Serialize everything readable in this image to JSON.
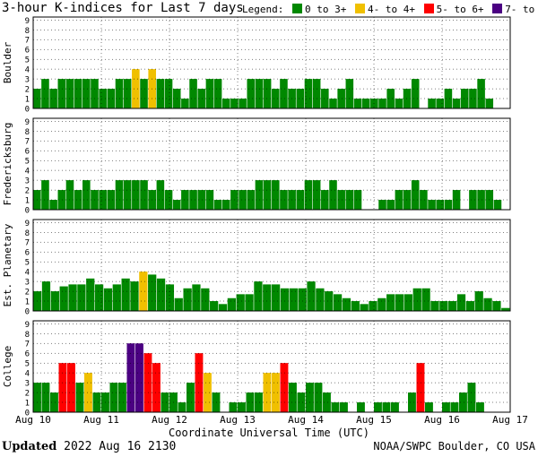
{
  "header": {
    "title": "3-hour K-indices for Last 7 days",
    "legend_label": "Legend:",
    "legend": [
      {
        "label": "0 to 3+",
        "color": "#008800"
      },
      {
        "label": "4- to 4+",
        "color": "#f0c000"
      },
      {
        "label": "5- to 6+",
        "color": "#ff0000"
      },
      {
        "label": "7- to 9",
        "color": "#4b0082"
      }
    ]
  },
  "footer": {
    "updated_label": "Updated",
    "updated_time": "2022 Aug 16 2130",
    "source": "NOAA/SWPC Boulder, CO USA"
  },
  "chart_data": [
    {
      "type": "bar",
      "ylabel": "Boulder",
      "ylim": [
        0,
        9
      ],
      "yticks": [
        "0",
        "1",
        "2",
        "3",
        "4",
        "5",
        "6",
        "7",
        "8",
        "9"
      ],
      "values": [
        2,
        3,
        2,
        3,
        3,
        3,
        3,
        3,
        2,
        2,
        3,
        3,
        4,
        3,
        4,
        3,
        3,
        2,
        1,
        3,
        2,
        3,
        3,
        1,
        1,
        1,
        3,
        3,
        3,
        2,
        3,
        2,
        2,
        3,
        3,
        2,
        1,
        2,
        3,
        1,
        1,
        1,
        1,
        2,
        1,
        2,
        3,
        0,
        1,
        1,
        2,
        1,
        2,
        2,
        3,
        1,
        0,
        0
      ]
    },
    {
      "type": "bar",
      "ylabel": "Fredericksburg",
      "ylim": [
        0,
        9
      ],
      "yticks": [
        "0",
        "1",
        "2",
        "3",
        "4",
        "5",
        "6",
        "7",
        "8",
        "9"
      ],
      "values": [
        2,
        3,
        1,
        2,
        3,
        2,
        3,
        2,
        2,
        2,
        3,
        3,
        3,
        3,
        2,
        3,
        2,
        1,
        2,
        2,
        2,
        2,
        1,
        1,
        2,
        2,
        2,
        3,
        3,
        3,
        2,
        2,
        2,
        3,
        3,
        2,
        3,
        2,
        2,
        2,
        0,
        0,
        1,
        1,
        2,
        2,
        3,
        2,
        1,
        1,
        1,
        2,
        0,
        2,
        2,
        2,
        1,
        0
      ]
    },
    {
      "type": "bar",
      "ylabel": "Est. Planetary",
      "ylim": [
        0,
        9
      ],
      "yticks": [
        "0",
        "1",
        "2",
        "3",
        "4",
        "5",
        "6",
        "7",
        "8",
        "9"
      ],
      "values": [
        2,
        3,
        2,
        2.5,
        2.7,
        2.7,
        3.3,
        2.7,
        2.3,
        2.7,
        3.3,
        3,
        4,
        3.7,
        3.3,
        2.7,
        1.3,
        2.3,
        2.7,
        2.3,
        1,
        0.7,
        1.3,
        1.7,
        1.7,
        3,
        2.7,
        2.7,
        2.3,
        2.3,
        2.3,
        3,
        2.3,
        2,
        1.7,
        1.3,
        1,
        0.7,
        1,
        1.3,
        1.7,
        1.7,
        1.7,
        2.3,
        2.3,
        1,
        1,
        1,
        1.7,
        1,
        2,
        1.3,
        1,
        0.3
      ]
    },
    {
      "type": "bar",
      "ylabel": "College",
      "ylim": [
        0,
        9
      ],
      "yticks": [
        "0",
        "1",
        "2",
        "3",
        "4",
        "5",
        "6",
        "7",
        "8",
        "9"
      ],
      "values": [
        3,
        3,
        2,
        5,
        5,
        3,
        4,
        2,
        2,
        3,
        3,
        7,
        7,
        6,
        5,
        2,
        2,
        1,
        3,
        6,
        4,
        2,
        0,
        1,
        1,
        2,
        2,
        4,
        4,
        5,
        3,
        2,
        3,
        3,
        2,
        1,
        1,
        0,
        1,
        0,
        1,
        1,
        1,
        0,
        2,
        5,
        1,
        0,
        1,
        1,
        2,
        3,
        1,
        0,
        0,
        0
      ]
    }
  ],
  "x_axis": {
    "label": "Coordinate Universal Time (UTC)",
    "ticks": [
      "Aug 10",
      "Aug 11",
      "Aug 12",
      "Aug 13",
      "Aug 14",
      "Aug 15",
      "Aug 16",
      "Aug 17"
    ]
  }
}
